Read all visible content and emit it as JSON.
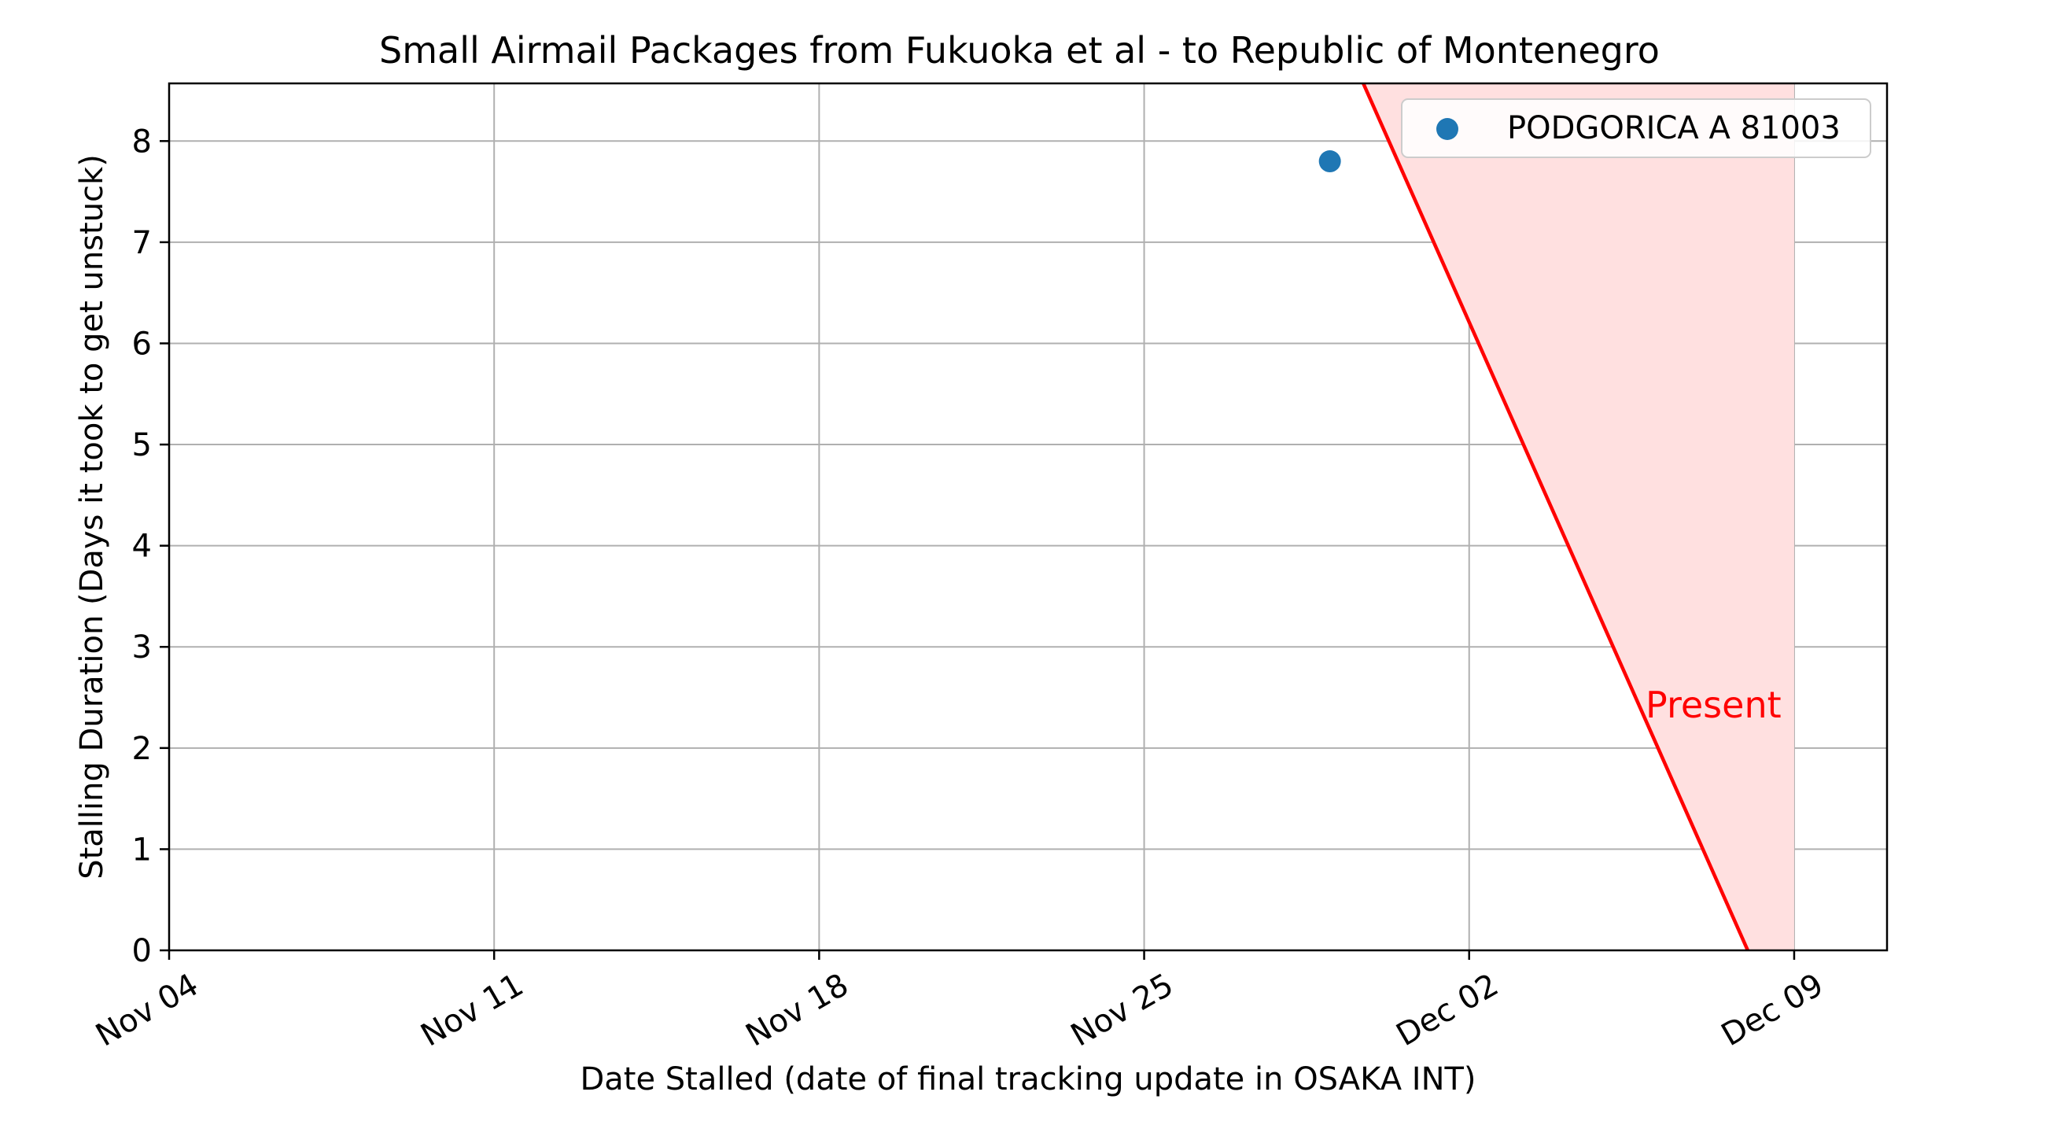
{
  "chart_data": {
    "type": "scatter",
    "title": "Small Airmail Packages from Fukuoka et al - to Republic of Montenegro",
    "xlabel": "Date Stalled (date of final tracking update in OSAKA INT)",
    "ylabel": "Stalling Duration (Days it took to get unstuck)",
    "x_axis": {
      "type": "date",
      "range": [
        "2024-11-04",
        "2024-12-11"
      ],
      "ticks": [
        {
          "label": "Nov 04",
          "date": "2024-11-04"
        },
        {
          "label": "Nov 11",
          "date": "2024-11-11"
        },
        {
          "label": "Nov 18",
          "date": "2024-11-18"
        },
        {
          "label": "Nov 25",
          "date": "2024-11-25"
        },
        {
          "label": "Dec 02",
          "date": "2024-12-02"
        },
        {
          "label": "Dec 09",
          "date": "2024-12-09"
        }
      ]
    },
    "y_axis": {
      "range": [
        0,
        8.57
      ],
      "ticks": [
        0,
        1,
        2,
        3,
        4,
        5,
        6,
        7,
        8
      ]
    },
    "grid": true,
    "legend": {
      "placement": "top-right",
      "entries": [
        {
          "label": "PODGORICA A 81003",
          "color": "#1f77b4"
        }
      ]
    },
    "series": [
      {
        "name": "PODGORICA A 81003",
        "color": "#1f77b4",
        "points": [
          {
            "x": "2024-11-29",
            "y": 7.8
          }
        ]
      }
    ],
    "present_line": {
      "label": "Present",
      "color": "#ff0000",
      "fill_color": "#ffe0e0",
      "points": [
        {
          "x": "2024-11-29.72",
          "y": 8.57
        },
        {
          "x": "2024-12-08.0",
          "y": 0
        }
      ],
      "fill_until": "2024-12-09",
      "label_anchor": {
        "x": "2024-12-05.8",
        "y": 2.3
      }
    }
  }
}
